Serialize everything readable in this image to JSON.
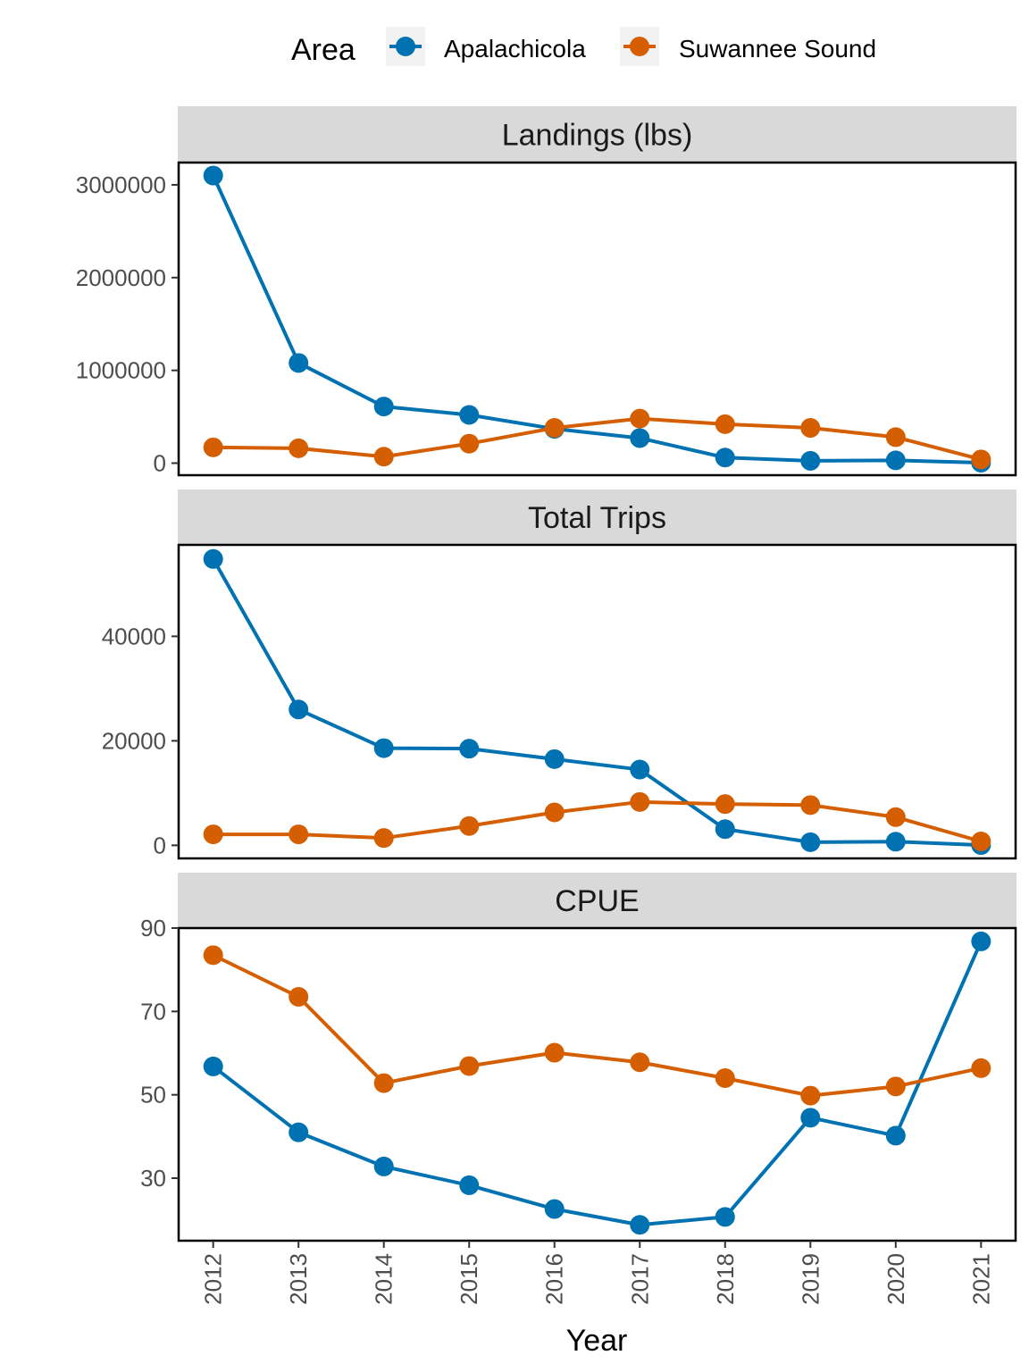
{
  "chart_data": {
    "type": "line",
    "layout": "faceted",
    "legend": {
      "title": "Area",
      "position": "top"
    },
    "x": [
      2012,
      2013,
      2014,
      2015,
      2016,
      2017,
      2018,
      2019,
      2020,
      2021
    ],
    "x_tick_labels": [
      "2012",
      "2013",
      "2014",
      "2015",
      "2016",
      "2017",
      "2018",
      "2019",
      "2020",
      "2021"
    ],
    "xlabel": "Year",
    "ylabel": "",
    "series_colors": {
      "Apalachicola": "#0072B2",
      "Suwannee Sound": "#D55E00"
    },
    "facets": [
      {
        "title": "Landings (lbs)",
        "ylim": [
          -130000,
          3240000
        ],
        "yticks": [
          0,
          1000000,
          2000000,
          3000000
        ],
        "ytick_labels": [
          "0",
          "1000000",
          "2000000",
          "3000000"
        ],
        "series": [
          {
            "name": "Apalachicola",
            "values": [
              3100000,
              1080000,
              610000,
              520000,
              370000,
              270000,
              60000,
              25000,
              30000,
              5000
            ]
          },
          {
            "name": "Suwannee Sound",
            "values": [
              170000,
              160000,
              70000,
              210000,
              380000,
              480000,
              420000,
              380000,
              280000,
              40000
            ]
          }
        ]
      },
      {
        "title": "Total Trips",
        "ylim": [
          -2500,
          57500
        ],
        "yticks": [
          0,
          20000,
          40000
        ],
        "ytick_labels": [
          "0",
          "20000",
          "40000"
        ],
        "series": [
          {
            "name": "Apalachicola",
            "values": [
              54800,
              26000,
              18600,
              18500,
              16500,
              14500,
              3100,
              600,
              700,
              50
            ]
          },
          {
            "name": "Suwannee Sound",
            "values": [
              2100,
              2100,
              1400,
              3700,
              6300,
              8300,
              7900,
              7700,
              5400,
              750
            ]
          }
        ]
      },
      {
        "title": "CPUE",
        "ylim": [
          15,
          90
        ],
        "yticks": [
          30,
          50,
          70,
          90
        ],
        "ytick_labels": [
          "30",
          "50",
          "70",
          "90"
        ],
        "series": [
          {
            "name": "Apalachicola",
            "values": [
              56.8,
              41.0,
              32.8,
              28.3,
              22.6,
              18.8,
              20.7,
              44.5,
              40.2,
              86.8
            ]
          },
          {
            "name": "Suwannee Sound",
            "values": [
              83.5,
              73.5,
              52.8,
              56.9,
              60.1,
              57.8,
              54.0,
              49.8,
              52.0,
              56.4
            ]
          }
        ]
      }
    ]
  }
}
